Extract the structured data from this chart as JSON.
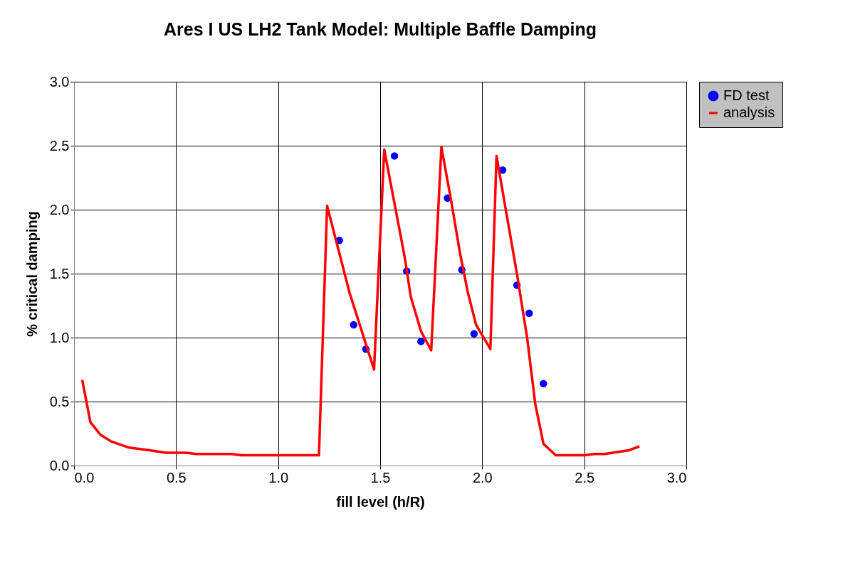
{
  "chart_data": {
    "type": "line",
    "title": "Ares I US LH2 Tank Model: Multiple Baffle Damping",
    "xlabel": "fill level (h/R)",
    "ylabel": "% critical damping",
    "xlim": [
      0,
      3
    ],
    "ylim": [
      0,
      3
    ],
    "xticks": [
      {
        "value": 0,
        "label": "0.0"
      },
      {
        "value": 0.5,
        "label": "0.5"
      },
      {
        "value": 1,
        "label": "1.0"
      },
      {
        "value": 1.5,
        "label": "1.5"
      },
      {
        "value": 2,
        "label": "2.0"
      },
      {
        "value": 2.5,
        "label": "2.5"
      },
      {
        "value": 3,
        "label": "3.0"
      }
    ],
    "yticks": [
      {
        "value": 0,
        "label": "0.0"
      },
      {
        "value": 0.5,
        "label": "0.5"
      },
      {
        "value": 1,
        "label": "1.0"
      },
      {
        "value": 1.5,
        "label": "1.5"
      },
      {
        "value": 2,
        "label": "2.0"
      },
      {
        "value": 2.5,
        "label": "2.5"
      },
      {
        "value": 3,
        "label": "3.0"
      }
    ],
    "grid": true,
    "legend": "right",
    "series": [
      {
        "name": "FD test",
        "type": "scatter",
        "marker": "circle",
        "color": "#0000ff",
        "x": [
          1.3,
          1.37,
          1.43,
          1.57,
          1.63,
          1.7,
          1.83,
          1.9,
          1.96,
          2.1,
          2.17,
          2.23,
          2.3
        ],
        "values": [
          1.76,
          1.1,
          0.91,
          2.42,
          1.52,
          0.97,
          2.09,
          1.53,
          1.03,
          2.31,
          1.41,
          1.19,
          0.64
        ]
      },
      {
        "name": "analysis",
        "line_style": "solid",
        "color": "#ff0000",
        "x": [
          0.04,
          0.08,
          0.13,
          0.18,
          0.27,
          0.37,
          0.45,
          0.55,
          0.6,
          0.77,
          0.82,
          1.0,
          1.2,
          1.24,
          1.3,
          1.35,
          1.41,
          1.47,
          1.52,
          1.57,
          1.62,
          1.65,
          1.7,
          1.75,
          1.8,
          1.85,
          1.89,
          1.93,
          1.97,
          2.04,
          2.07,
          2.11,
          2.17,
          2.22,
          2.26,
          2.3,
          2.36,
          2.5,
          2.55,
          2.6,
          2.72,
          2.77
        ],
        "values": [
          0.67,
          0.34,
          0.24,
          0.19,
          0.14,
          0.12,
          0.1,
          0.1,
          0.09,
          0.09,
          0.08,
          0.08,
          0.08,
          2.03,
          1.66,
          1.35,
          1.05,
          0.75,
          2.47,
          2.05,
          1.63,
          1.32,
          1.05,
          0.9,
          2.49,
          2.05,
          1.67,
          1.35,
          1.1,
          0.91,
          2.42,
          2.05,
          1.5,
          1.0,
          0.48,
          0.17,
          0.08,
          0.08,
          0.09,
          0.09,
          0.12,
          0.15
        ]
      }
    ]
  }
}
